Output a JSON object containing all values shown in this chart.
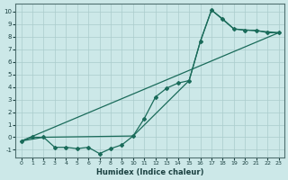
{
  "xlabel": "Humidex (Indice chaleur)",
  "bg_color": "#cce8e8",
  "grid_color": "#aacccc",
  "line_color": "#1a6b5a",
  "xlim": [
    -0.5,
    23.5
  ],
  "ylim": [
    -1.6,
    10.6
  ],
  "xticks": [
    0,
    1,
    2,
    3,
    4,
    5,
    6,
    7,
    8,
    9,
    10,
    11,
    12,
    13,
    14,
    15,
    16,
    17,
    18,
    19,
    20,
    21,
    22,
    23
  ],
  "yticks": [
    -1,
    0,
    1,
    2,
    3,
    4,
    5,
    6,
    7,
    8,
    9,
    10
  ],
  "series_zigzag": [
    [
      0,
      -0.3
    ],
    [
      1,
      0.0
    ],
    [
      2,
      0.0
    ],
    [
      3,
      -0.8
    ],
    [
      4,
      -0.8
    ],
    [
      5,
      -0.9
    ],
    [
      6,
      -0.8
    ],
    [
      7,
      -1.3
    ],
    [
      8,
      -0.9
    ],
    [
      9,
      -0.6
    ],
    [
      10,
      0.1
    ],
    [
      11,
      1.5
    ],
    [
      12,
      3.2
    ],
    [
      13,
      3.9
    ],
    [
      14,
      4.3
    ],
    [
      15,
      4.5
    ],
    [
      16,
      7.6
    ],
    [
      17,
      10.1
    ],
    [
      18,
      9.4
    ],
    [
      19,
      8.6
    ],
    [
      20,
      8.5
    ],
    [
      21,
      8.5
    ],
    [
      22,
      8.3
    ],
    [
      23,
      8.3
    ]
  ],
  "series_smooth": [
    [
      0,
      -0.3
    ],
    [
      2,
      0.0
    ],
    [
      10,
      0.1
    ],
    [
      15,
      4.5
    ],
    [
      16,
      7.6
    ],
    [
      17,
      10.1
    ],
    [
      19,
      8.6
    ],
    [
      23,
      8.3
    ]
  ],
  "series_diagonal": [
    [
      0,
      -0.3
    ],
    [
      23,
      8.3
    ]
  ]
}
